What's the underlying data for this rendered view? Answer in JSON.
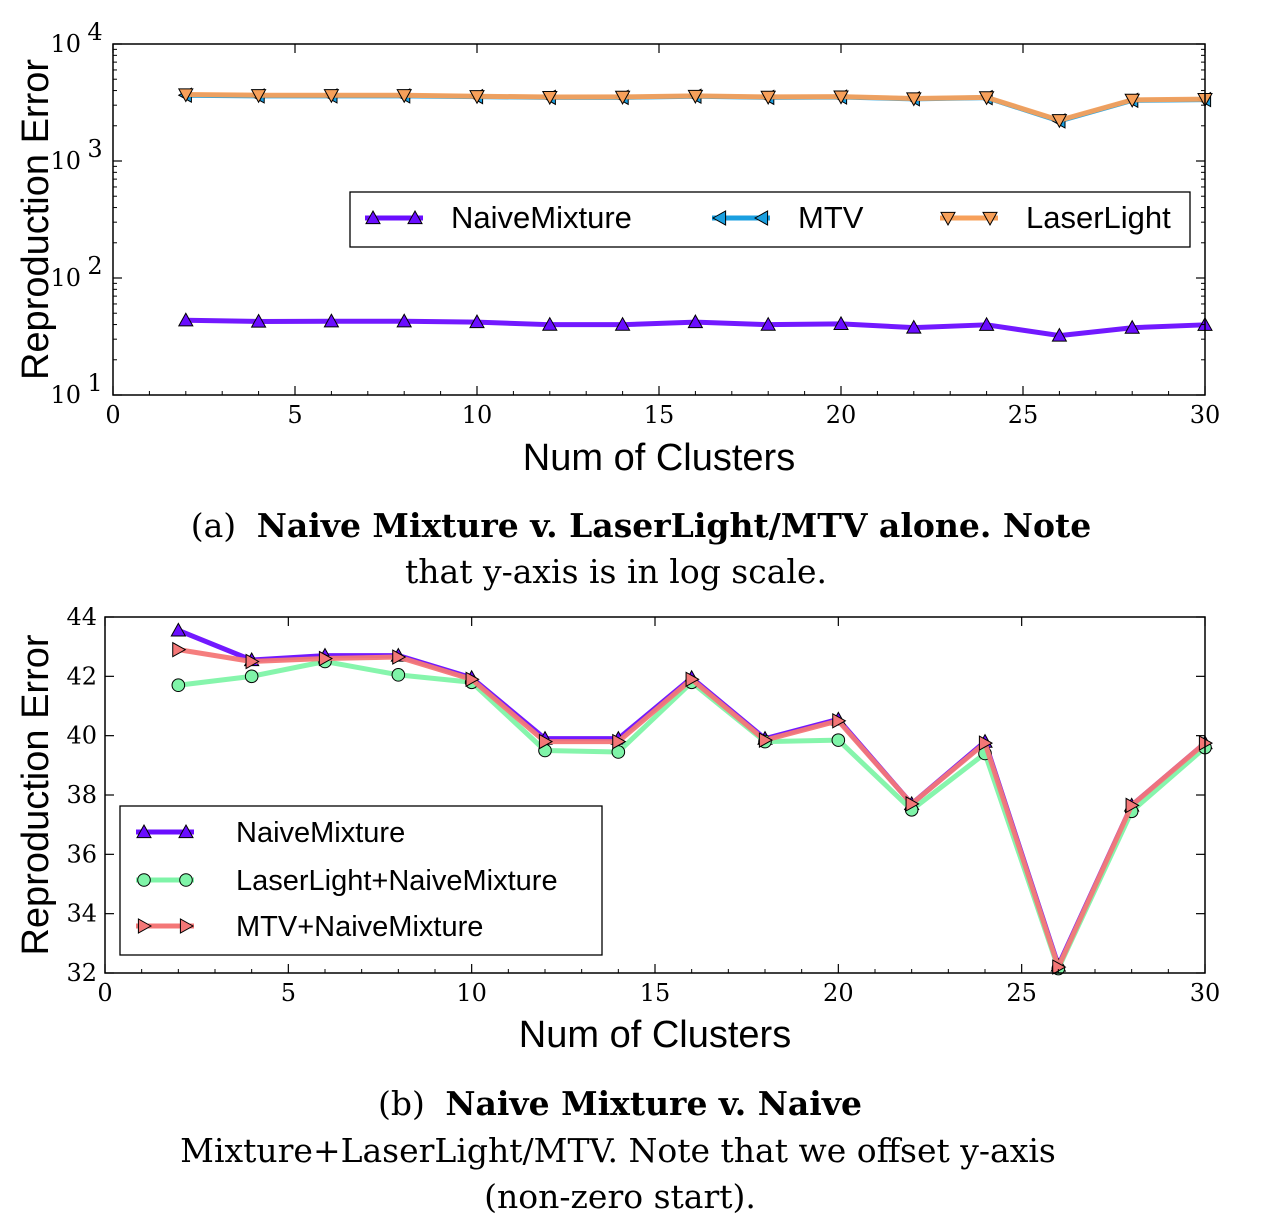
{
  "chart_data": [
    {
      "type": "line",
      "xlabel": "Num of Clusters",
      "ylabel": "Reproduction Error",
      "xlim": [
        0,
        30
      ],
      "ylim": [
        10,
        10000
      ],
      "yscale": "log",
      "xticks": [
        "0",
        "5",
        "10",
        "15",
        "20",
        "25",
        "30"
      ],
      "yticks": [
        {
          "base": "10",
          "exp": "1"
        },
        {
          "base": "10",
          "exp": "2"
        },
        {
          "base": "10",
          "exp": "3"
        },
        {
          "base": "10",
          "exp": "4"
        }
      ],
      "grid": false,
      "legend": "center-right",
      "x": [
        2,
        4,
        6,
        8,
        10,
        12,
        14,
        16,
        18,
        20,
        22,
        24,
        26,
        28,
        30
      ],
      "series": [
        {
          "name": "NaiveMixture",
          "color": "#6a0dff",
          "marker": "triangle-up",
          "values": [
            43.5,
            42.5,
            42.7,
            42.7,
            42.0,
            39.9,
            39.9,
            42.0,
            39.9,
            40.5,
            37.7,
            39.8,
            32.2,
            37.6,
            39.8
          ]
        },
        {
          "name": "MTV",
          "color": "#1a9fe0",
          "marker": "triangle-left",
          "values": [
            3650,
            3600,
            3600,
            3600,
            3550,
            3500,
            3500,
            3580,
            3500,
            3520,
            3400,
            3480,
            2200,
            3300,
            3350
          ]
        },
        {
          "name": "LaserLight",
          "color": "#f7a05a",
          "marker": "triangle-down",
          "values": [
            3700,
            3650,
            3650,
            3650,
            3580,
            3520,
            3530,
            3600,
            3530,
            3550,
            3420,
            3500,
            2230,
            3330,
            3380
          ]
        }
      ]
    },
    {
      "type": "line",
      "xlabel": "Num of Clusters",
      "ylabel": "Reproduction Error",
      "xlim": [
        0,
        30
      ],
      "ylim": [
        32,
        44
      ],
      "xticks": [
        "0",
        "5",
        "10",
        "15",
        "20",
        "25",
        "30"
      ],
      "yticks": [
        "32",
        "34",
        "36",
        "38",
        "40",
        "42",
        "44"
      ],
      "grid": false,
      "legend": "lower-left",
      "x": [
        2,
        4,
        6,
        8,
        10,
        12,
        14,
        16,
        18,
        20,
        22,
        24,
        26,
        28,
        30
      ],
      "series": [
        {
          "name": "NaiveMixture",
          "color": "#6a0dff",
          "marker": "triangle-up",
          "values": [
            43.55,
            42.55,
            42.7,
            42.7,
            41.95,
            39.9,
            39.9,
            41.95,
            39.9,
            40.55,
            37.7,
            39.8,
            32.25,
            37.65,
            39.75
          ]
        },
        {
          "name": "LaserLight+NaiveMixture",
          "color": "#7ff4a8",
          "marker": "circle",
          "values": [
            41.7,
            42.0,
            42.5,
            42.05,
            41.8,
            39.5,
            39.45,
            41.8,
            39.8,
            39.85,
            37.5,
            39.4,
            32.15,
            37.45,
            39.6
          ]
        },
        {
          "name": "MTV+NaiveMixture",
          "color": "#f47777",
          "marker": "triangle-right",
          "values": [
            42.9,
            42.5,
            42.6,
            42.65,
            41.9,
            39.8,
            39.8,
            41.9,
            39.85,
            40.5,
            37.7,
            39.75,
            32.2,
            37.65,
            39.75
          ]
        }
      ]
    }
  ],
  "captions": {
    "a": {
      "label": "(a)",
      "line1": "Naive Mixture v. LaserLight/MTV alone. Note",
      "line2": "that y-axis is in log scale."
    },
    "b": {
      "label": "(b)",
      "line1": "Naive Mixture v. Naive",
      "line2": "Mixture+LaserLight/MTV. Note that we offset y-axis",
      "line3": "(non-zero start)."
    }
  }
}
